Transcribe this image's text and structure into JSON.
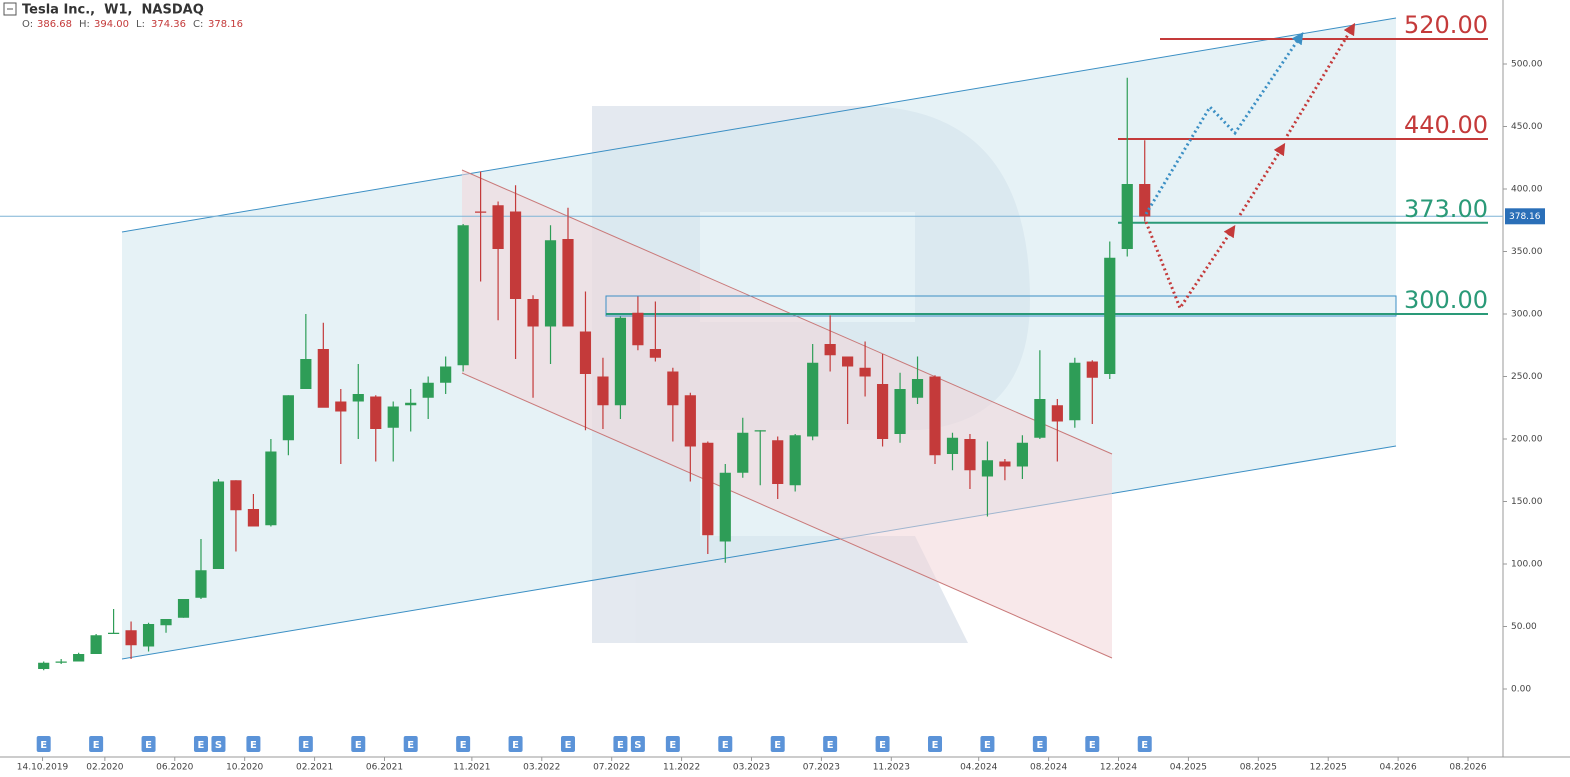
{
  "header": {
    "title": "Tesla Inc.,  W1,  NASDAQ",
    "ohlc": [
      [
        "O:",
        "386.68"
      ],
      [
        "H:",
        "394.00"
      ],
      [
        "L:",
        "374.36"
      ],
      [
        "C:",
        "378.16"
      ]
    ]
  },
  "chart_data": {
    "type": "candlestick",
    "x": [
      "10.2019",
      "11.2019",
      "12.2019",
      "01.2020",
      "02.2020",
      "03.2020",
      "04.2020",
      "05.2020",
      "06.2020",
      "07.2020",
      "08.2020",
      "09.2020",
      "10.2020",
      "11.2020",
      "12.2020",
      "01.2021",
      "02.2021",
      "03.2021",
      "04.2021",
      "05.2021",
      "06.2021",
      "07.2021",
      "08.2021",
      "09.2021",
      "10.2021",
      "11.2021",
      "12.2021",
      "01.2022",
      "02.2022",
      "03.2022",
      "04.2022",
      "05.2022",
      "06.2022",
      "07.2022",
      "08.2022",
      "09.2022",
      "10.2022",
      "11.2022",
      "12.2022",
      "01.2023",
      "02.2023",
      "03.2023",
      "04.2023",
      "05.2023",
      "06.2023",
      "07.2023",
      "08.2023",
      "09.2023",
      "10.2023",
      "11.2023",
      "12.2023",
      "01.2024",
      "02.2024",
      "03.2024",
      "04.2024",
      "05.2024",
      "06.2024",
      "07.2024",
      "08.2024",
      "09.2024",
      "10.2024",
      "11.2024",
      "12.2024",
      "01.2025"
    ],
    "open": [
      16,
      21,
      22,
      28,
      44,
      47,
      34,
      51,
      57,
      73,
      96,
      167,
      144,
      131,
      199,
      240,
      272,
      230,
      230,
      234,
      209,
      227,
      233,
      245,
      259,
      382,
      387,
      382,
      312,
      290,
      360,
      286,
      250,
      227,
      301,
      272,
      254,
      235,
      197,
      118,
      173,
      206,
      199,
      163,
      202,
      276,
      266,
      257,
      244,
      204,
      233,
      250,
      188,
      200,
      170,
      182,
      178,
      201,
      227,
      215,
      262,
      252,
      352,
      404
    ],
    "high": [
      22,
      24,
      29,
      44,
      64,
      54,
      53,
      56,
      72,
      120,
      168,
      167,
      156,
      200,
      235,
      300,
      293,
      240,
      260,
      235,
      230,
      240,
      250,
      266,
      372,
      414,
      390,
      403,
      315,
      371,
      385,
      318,
      265,
      298,
      314,
      310,
      257,
      237,
      198,
      180,
      217,
      207,
      202,
      204,
      276,
      299,
      266,
      278,
      268,
      253,
      266,
      251,
      205,
      204,
      198,
      184,
      203,
      271,
      232,
      265,
      263,
      358,
      489,
      439
    ],
    "low": [
      15,
      20,
      22,
      28,
      44,
      24,
      30,
      45,
      57,
      72,
      96,
      110,
      130,
      130,
      187,
      240,
      227,
      180,
      200,
      182,
      182,
      206,
      216,
      236,
      254,
      326,
      295,
      264,
      233,
      260,
      290,
      207,
      208,
      216,
      271,
      262,
      198,
      166,
      108,
      101,
      169,
      163,
      152,
      158,
      199,
      254,
      212,
      234,
      194,
      197,
      228,
      180,
      175,
      160,
      138,
      167,
      168,
      200,
      182,
      209,
      212,
      248,
      346,
      374
    ],
    "close": [
      21,
      22,
      28,
      43,
      45,
      35,
      52,
      56,
      72,
      95,
      166,
      143,
      130,
      190,
      235,
      264,
      225,
      222,
      236,
      208,
      226,
      229,
      245,
      258,
      371,
      381,
      352,
      312,
      290,
      359,
      290,
      252,
      227,
      297,
      275,
      265,
      227,
      194,
      123,
      173,
      205,
      207,
      164,
      203,
      261,
      267,
      258,
      250,
      200,
      240,
      248,
      187,
      201,
      175,
      183,
      178,
      197,
      232,
      214,
      261,
      249,
      345,
      404,
      378
    ],
    "up_color": "#2e9d57",
    "down_color": "#c43a3a",
    "xlim": [
      "08.2019",
      "10.2026"
    ],
    "xticks": [
      "14.10.2019",
      "02.2020",
      "06.2020",
      "10.2020",
      "02.2021",
      "06.2021",
      "11.2021",
      "03.2022",
      "07.2022",
      "11.2022",
      "03.2023",
      "07.2023",
      "11.2023",
      "04.2024",
      "08.2024",
      "12.2024",
      "04.2025",
      "08.2025",
      "12.2025",
      "04.2026",
      "08.2026"
    ],
    "ylim": [
      -54.4,
      551.2
    ],
    "yticks": [
      {
        "value": 0,
        "label": "0.00"
      },
      {
        "value": 50,
        "label": "50.00"
      },
      {
        "value": 100,
        "label": "100.00"
      },
      {
        "value": 150,
        "label": "150.00"
      },
      {
        "value": 200,
        "label": "200.00"
      },
      {
        "value": 250,
        "label": "250.00"
      },
      {
        "value": 300,
        "label": "300.00"
      },
      {
        "value": 350,
        "label": "350.00"
      },
      {
        "value": 400,
        "label": "400.00"
      },
      {
        "value": 450,
        "label": "450.00"
      },
      {
        "value": 500,
        "label": "500.00"
      }
    ],
    "last_price": {
      "value": 378.16,
      "label": "378.16"
    },
    "levels": [
      {
        "value": 520,
        "label": "520.00",
        "color": "#c43a3a"
      },
      {
        "value": 440,
        "label": "440.00",
        "color": "#c43a3a"
      },
      {
        "value": 373,
        "label": "373.00",
        "color": "#2a9a78"
      },
      {
        "value": 300,
        "label": "300.00",
        "color": "#2a9a78"
      }
    ],
    "events": {
      "x": [
        "10.2019",
        "01.2020",
        "04.2020",
        "07.2020",
        "08.2020",
        "10.2020",
        "01.2021",
        "04.2021",
        "07.2021",
        "10.2021",
        "01.2022",
        "04.2022",
        "07.2022",
        "08.2022",
        "10.2022",
        "01.2023",
        "04.2023",
        "07.2023",
        "10.2023",
        "01.2024",
        "04.2024",
        "07.2024",
        "10.2024",
        "01.2025"
      ],
      "labels": [
        "E",
        "E",
        "E",
        "E",
        "S",
        "E",
        "E",
        "E",
        "E",
        "E",
        "E",
        "E",
        "E",
        "S",
        "E",
        "E",
        "E",
        "E",
        "E",
        "E",
        "E",
        "E",
        "E",
        "E"
      ]
    }
  }
}
